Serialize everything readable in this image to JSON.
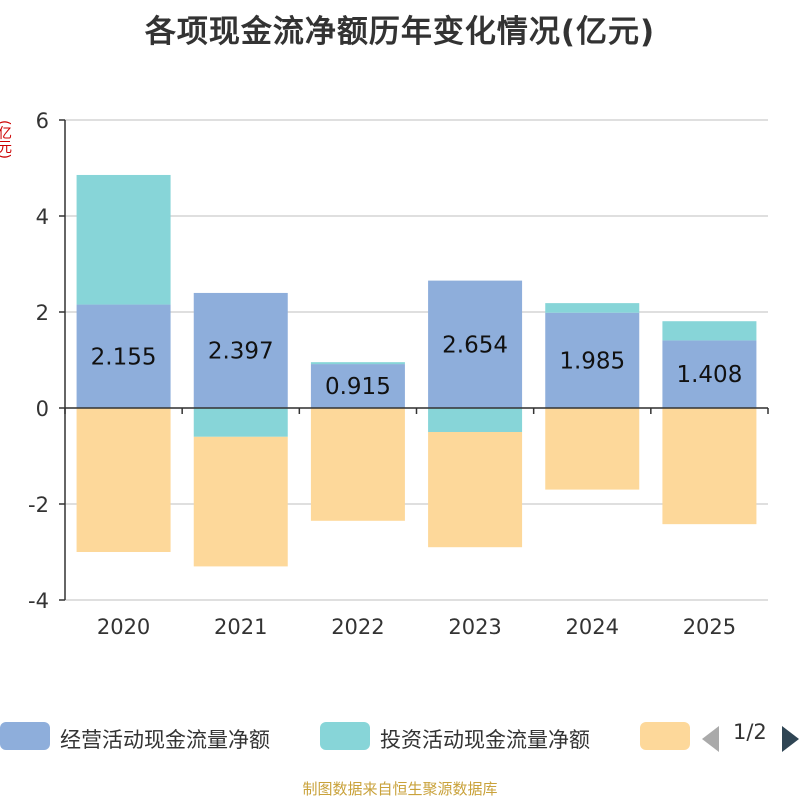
{
  "chart_data": {
    "type": "bar",
    "stacked": true,
    "title": "各项现金流净额历年变化情况(亿元)",
    "ylabel": "(亿元)",
    "ylim": [
      -4,
      6
    ],
    "yticks": [
      -4,
      -2,
      0,
      2,
      4,
      6
    ],
    "categories": [
      "2020",
      "2021",
      "2022",
      "2023",
      "2024",
      "2025"
    ],
    "series": [
      {
        "name": "经营活动现金流量净额",
        "color": "#8eaedb",
        "values": [
          2.155,
          2.397,
          0.915,
          2.654,
          1.985,
          1.408
        ]
      },
      {
        "name": "投资活动现金流量净额",
        "color": "#87d5d8",
        "values": [
          2.7,
          -0.6,
          0.04,
          -0.5,
          0.2,
          0.4
        ]
      },
      {
        "name": "",
        "color": "#fdd89a",
        "values": [
          -3.0,
          -2.7,
          -2.35,
          -2.4,
          -1.7,
          -2.42
        ]
      }
    ],
    "data_labels": [
      "2.155",
      "2.397",
      "0.915",
      "2.654",
      "1.985",
      "1.408"
    ],
    "grid": true,
    "legend_position": "bottom"
  },
  "legend": {
    "page_indicator": "1/2"
  },
  "source_note": "制图数据来自恒生聚源数据库"
}
